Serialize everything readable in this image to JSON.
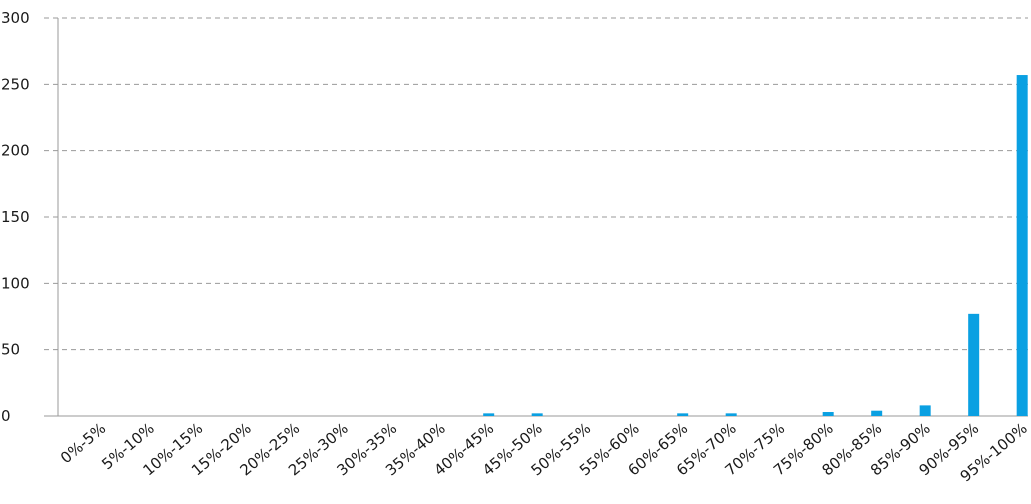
{
  "chart_data": {
    "type": "bar",
    "title": "",
    "xlabel": "",
    "ylabel": "",
    "categories": [
      "0%-5%",
      "5%-10%",
      "10%-15%",
      "15%-20%",
      "20%-25%",
      "25%-30%",
      "30%-35%",
      "35%-40%",
      "40%-45%",
      "45%-50%",
      "50%-55%",
      "55%-60%",
      "60%-65%",
      "65%-70%",
      "70%-75%",
      "75%-80%",
      "80%-85%",
      "85%-90%",
      "90%-95%",
      "95%-100%"
    ],
    "values": [
      0,
      0,
      0,
      0,
      0,
      0,
      0,
      0,
      2,
      2,
      0,
      0,
      2,
      2,
      0,
      3,
      4,
      8,
      77,
      257
    ],
    "ylim": [
      0,
      300
    ],
    "yticks": [
      0,
      50,
      100,
      150,
      200,
      250,
      300
    ],
    "grid": true,
    "legend": "none",
    "bar_color": "#0aa0e2"
  }
}
